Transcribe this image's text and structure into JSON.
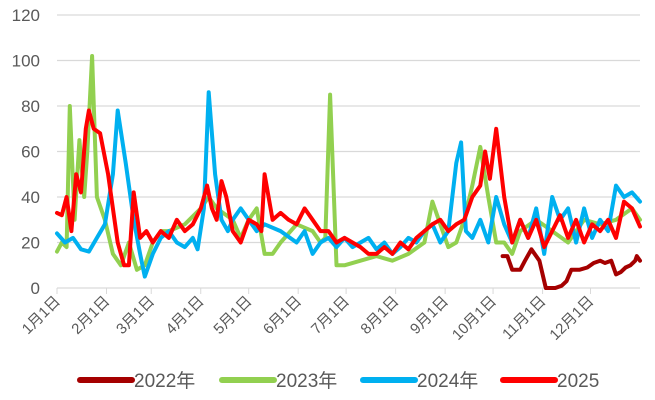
{
  "chart_data": {
    "type": "line",
    "title": "",
    "xlabel": "",
    "ylabel": "",
    "ylim": [
      0,
      120
    ],
    "yticks": [
      0,
      20,
      40,
      60,
      80,
      100,
      120
    ],
    "xlim_days": [
      0,
      365
    ],
    "xticks": [
      {
        "day": 0,
        "label": "1月1日"
      },
      {
        "day": 31,
        "label": "2月1日"
      },
      {
        "day": 59,
        "label": "3月1日"
      },
      {
        "day": 90,
        "label": "4月1日"
      },
      {
        "day": 120,
        "label": "5月1日"
      },
      {
        "day": 151,
        "label": "6月1日"
      },
      {
        "day": 181,
        "label": "7月1日"
      },
      {
        "day": 212,
        "label": "8月1日"
      },
      {
        "day": 243,
        "label": "9月1日"
      },
      {
        "day": 273,
        "label": "10月1日"
      },
      {
        "day": 304,
        "label": "11月1日"
      },
      {
        "day": 334,
        "label": "12月1日"
      }
    ],
    "grid": true,
    "legend": "bottom",
    "series": [
      {
        "name": "2022年",
        "color": "#a50000",
        "points": [
          [
            279,
            14
          ],
          [
            282,
            14
          ],
          [
            285,
            8
          ],
          [
            290,
            8
          ],
          [
            293,
            12
          ],
          [
            297,
            17
          ],
          [
            302,
            12
          ],
          [
            306,
            0
          ],
          [
            312,
            0
          ],
          [
            316,
            1
          ],
          [
            319,
            3
          ],
          [
            322,
            8
          ],
          [
            327,
            8
          ],
          [
            332,
            9
          ],
          [
            336,
            11
          ],
          [
            340,
            12
          ],
          [
            343,
            11
          ],
          [
            347,
            12
          ],
          [
            350,
            6
          ],
          [
            353,
            7
          ],
          [
            356,
            9
          ],
          [
            359,
            10
          ],
          [
            362,
            12
          ],
          [
            363,
            14
          ],
          [
            365,
            12
          ]
        ]
      },
      {
        "name": "2023年",
        "color": "#92d050",
        "points": [
          [
            0,
            16
          ],
          [
            3,
            20
          ],
          [
            6,
            18
          ],
          [
            8,
            80
          ],
          [
            11,
            30
          ],
          [
            14,
            65
          ],
          [
            17,
            40
          ],
          [
            19,
            60
          ],
          [
            22,
            102
          ],
          [
            25,
            40
          ],
          [
            30,
            30
          ],
          [
            35,
            15
          ],
          [
            40,
            10
          ],
          [
            45,
            20
          ],
          [
            50,
            8
          ],
          [
            55,
            10
          ],
          [
            60,
            20
          ],
          [
            65,
            25
          ],
          [
            70,
            25
          ],
          [
            80,
            28
          ],
          [
            90,
            35
          ],
          [
            95,
            40
          ],
          [
            100,
            35
          ],
          [
            110,
            30
          ],
          [
            115,
            22
          ],
          [
            120,
            30
          ],
          [
            125,
            35
          ],
          [
            130,
            15
          ],
          [
            135,
            15
          ],
          [
            140,
            20
          ],
          [
            150,
            28
          ],
          [
            160,
            25
          ],
          [
            165,
            20
          ],
          [
            168,
            22
          ],
          [
            171,
            85
          ],
          [
            175,
            10
          ],
          [
            180,
            10
          ],
          [
            190,
            12
          ],
          [
            200,
            14
          ],
          [
            210,
            12
          ],
          [
            220,
            15
          ],
          [
            230,
            20
          ],
          [
            235,
            38
          ],
          [
            240,
            28
          ],
          [
            245,
            18
          ],
          [
            250,
            20
          ],
          [
            255,
            30
          ],
          [
            260,
            45
          ],
          [
            265,
            62
          ],
          [
            270,
            40
          ],
          [
            275,
            20
          ],
          [
            280,
            20
          ],
          [
            285,
            15
          ],
          [
            290,
            25
          ],
          [
            300,
            30
          ],
          [
            310,
            25
          ],
          [
            320,
            20
          ],
          [
            330,
            30
          ],
          [
            340,
            28
          ],
          [
            350,
            30
          ],
          [
            360,
            35
          ],
          [
            365,
            30
          ]
        ]
      },
      {
        "name": "2024年",
        "color": "#00b0f0",
        "points": [
          [
            0,
            24
          ],
          [
            5,
            20
          ],
          [
            10,
            22
          ],
          [
            15,
            17
          ],
          [
            20,
            16
          ],
          [
            25,
            22
          ],
          [
            30,
            28
          ],
          [
            35,
            50
          ],
          [
            38,
            78
          ],
          [
            43,
            55
          ],
          [
            48,
            30
          ],
          [
            52,
            15
          ],
          [
            55,
            5
          ],
          [
            60,
            15
          ],
          [
            65,
            22
          ],
          [
            70,
            25
          ],
          [
            75,
            20
          ],
          [
            80,
            18
          ],
          [
            85,
            22
          ],
          [
            88,
            17
          ],
          [
            92,
            35
          ],
          [
            95,
            86
          ],
          [
            99,
            50
          ],
          [
            103,
            30
          ],
          [
            107,
            25
          ],
          [
            110,
            30
          ],
          [
            115,
            35
          ],
          [
            120,
            30
          ],
          [
            125,
            25
          ],
          [
            130,
            28
          ],
          [
            140,
            25
          ],
          [
            150,
            20
          ],
          [
            155,
            25
          ],
          [
            160,
            15
          ],
          [
            165,
            20
          ],
          [
            170,
            22
          ],
          [
            175,
            18
          ],
          [
            180,
            22
          ],
          [
            185,
            18
          ],
          [
            190,
            20
          ],
          [
            195,
            22
          ],
          [
            200,
            17
          ],
          [
            205,
            20
          ],
          [
            210,
            15
          ],
          [
            215,
            18
          ],
          [
            220,
            22
          ],
          [
            225,
            20
          ],
          [
            230,
            25
          ],
          [
            235,
            28
          ],
          [
            240,
            20
          ],
          [
            245,
            25
          ],
          [
            250,
            55
          ],
          [
            253,
            64
          ],
          [
            256,
            25
          ],
          [
            260,
            22
          ],
          [
            265,
            30
          ],
          [
            270,
            20
          ],
          [
            275,
            40
          ],
          [
            280,
            28
          ],
          [
            285,
            20
          ],
          [
            290,
            30
          ],
          [
            295,
            22
          ],
          [
            300,
            35
          ],
          [
            305,
            15
          ],
          [
            310,
            40
          ],
          [
            315,
            30
          ],
          [
            320,
            35
          ],
          [
            325,
            20
          ],
          [
            330,
            35
          ],
          [
            335,
            22
          ],
          [
            340,
            30
          ],
          [
            345,
            25
          ],
          [
            350,
            45
          ],
          [
            355,
            40
          ],
          [
            360,
            42
          ],
          [
            365,
            38
          ]
        ]
      },
      {
        "name": "2025",
        "color": "#ff0000",
        "points": [
          [
            0,
            33
          ],
          [
            3,
            32
          ],
          [
            6,
            40
          ],
          [
            9,
            25
          ],
          [
            12,
            50
          ],
          [
            15,
            42
          ],
          [
            18,
            70
          ],
          [
            20,
            78
          ],
          [
            23,
            70
          ],
          [
            27,
            68
          ],
          [
            32,
            50
          ],
          [
            38,
            20
          ],
          [
            42,
            10
          ],
          [
            45,
            10
          ],
          [
            48,
            42
          ],
          [
            52,
            22
          ],
          [
            56,
            25
          ],
          [
            60,
            20
          ],
          [
            65,
            25
          ],
          [
            70,
            22
          ],
          [
            75,
            30
          ],
          [
            80,
            25
          ],
          [
            85,
            28
          ],
          [
            90,
            35
          ],
          [
            94,
            45
          ],
          [
            97,
            35
          ],
          [
            100,
            30
          ],
          [
            103,
            47
          ],
          [
            106,
            40
          ],
          [
            110,
            25
          ],
          [
            115,
            20
          ],
          [
            120,
            30
          ],
          [
            125,
            28
          ],
          [
            128,
            25
          ],
          [
            130,
            50
          ],
          [
            135,
            30
          ],
          [
            140,
            33
          ],
          [
            145,
            30
          ],
          [
            150,
            28
          ],
          [
            155,
            35
          ],
          [
            160,
            30
          ],
          [
            165,
            25
          ],
          [
            170,
            25
          ],
          [
            175,
            20
          ],
          [
            180,
            22
          ],
          [
            185,
            20
          ],
          [
            190,
            18
          ],
          [
            195,
            15
          ],
          [
            200,
            15
          ],
          [
            205,
            18
          ],
          [
            210,
            15
          ],
          [
            215,
            20
          ],
          [
            220,
            17
          ],
          [
            225,
            22
          ],
          [
            230,
            25
          ],
          [
            235,
            28
          ],
          [
            240,
            30
          ],
          [
            245,
            25
          ],
          [
            250,
            28
          ],
          [
            255,
            30
          ],
          [
            260,
            40
          ],
          [
            265,
            45
          ],
          [
            268,
            60
          ],
          [
            271,
            48
          ],
          [
            275,
            70
          ],
          [
            280,
            40
          ],
          [
            285,
            20
          ],
          [
            290,
            30
          ],
          [
            295,
            22
          ],
          [
            300,
            30
          ],
          [
            305,
            18
          ],
          [
            310,
            25
          ],
          [
            315,
            32
          ],
          [
            320,
            22
          ],
          [
            325,
            30
          ],
          [
            330,
            20
          ],
          [
            335,
            28
          ],
          [
            340,
            25
          ],
          [
            345,
            30
          ],
          [
            350,
            22
          ],
          [
            355,
            38
          ],
          [
            360,
            35
          ],
          [
            365,
            27
          ]
        ]
      }
    ]
  }
}
